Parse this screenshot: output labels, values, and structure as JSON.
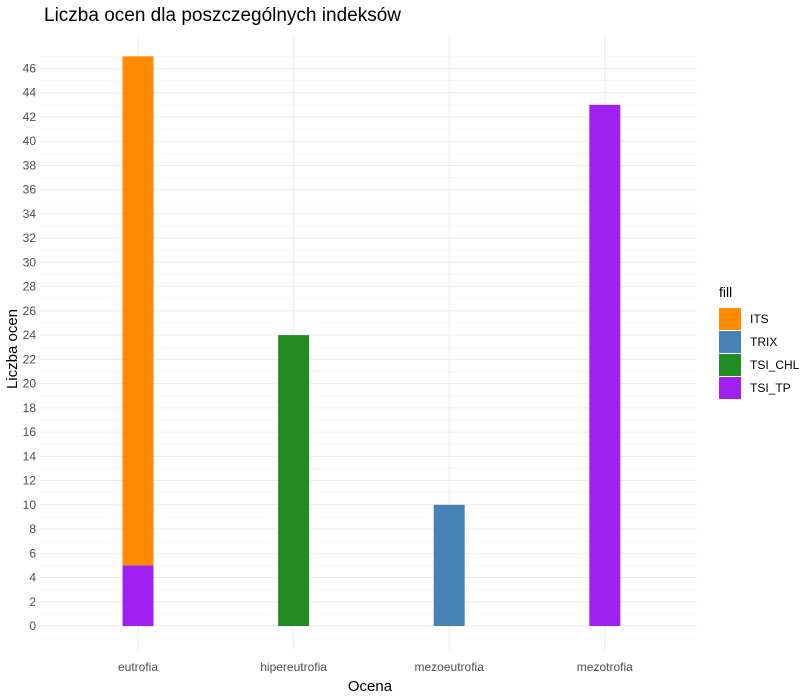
{
  "chart_data": {
    "type": "bar",
    "stacked": true,
    "title": "Liczba ocen dla poszczególnych indeksów",
    "xlabel": "Ocena",
    "ylabel": "Liczba ocen",
    "categories": [
      "eutrofia",
      "hipereutrofia",
      "mezoeutrofia",
      "mezotrofia"
    ],
    "y_ticks": [
      "0",
      "2",
      "4",
      "6",
      "8",
      "10",
      "12",
      "14",
      "16",
      "18",
      "20",
      "22",
      "24",
      "26",
      "28",
      "30",
      "32",
      "34",
      "36",
      "38",
      "40",
      "42",
      "44",
      "46"
    ],
    "ylim": [
      -1,
      49
    ],
    "grid": true,
    "legend_title": "fill",
    "legend_position": "right",
    "series": [
      {
        "name": "ITS",
        "color": "#FF8C00",
        "values": [
          42,
          0,
          0,
          0
        ]
      },
      {
        "name": "TRIX",
        "color": "#4682B4",
        "values": [
          0,
          0,
          10,
          0
        ]
      },
      {
        "name": "TSI_CHL",
        "color": "#228B22",
        "values": [
          0,
          24,
          0,
          0
        ]
      },
      {
        "name": "TSI_TP",
        "color": "#A020F0",
        "values": [
          5,
          0,
          0,
          43
        ]
      }
    ],
    "stack_order": [
      "TSI_TP",
      "ITS",
      "TRIX",
      "TSI_CHL"
    ]
  }
}
